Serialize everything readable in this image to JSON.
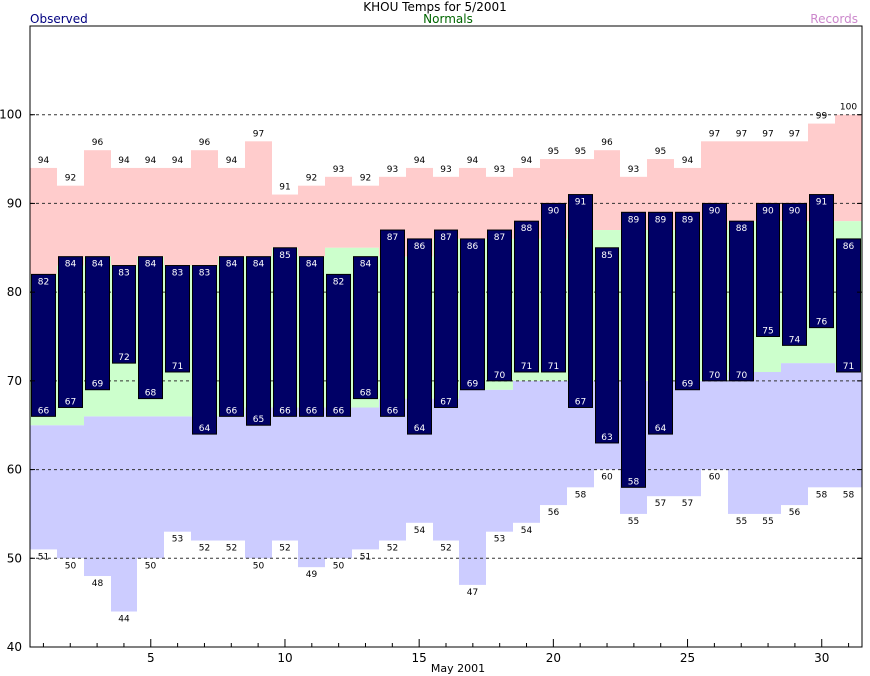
{
  "header": {
    "title": "KHOU Temps for 5/2001",
    "observed_label": "Observed",
    "normals_label": "Normals",
    "records_label": "Records"
  },
  "colors": {
    "observed": "#000066",
    "observed_label": "#000080",
    "normals_band": "#ccffcc",
    "normals_label": "#006600",
    "record_high_band": "#ffcccc",
    "record_low_band": "#ccccff",
    "records_label": "#cc88cc"
  },
  "chart_data": {
    "type": "bar",
    "title": "KHOU Temps for 5/2001",
    "xlabel": "May 2001",
    "ylabel": "",
    "days": [
      1,
      2,
      3,
      4,
      5,
      6,
      7,
      8,
      9,
      10,
      11,
      12,
      13,
      14,
      15,
      16,
      17,
      18,
      19,
      20,
      21,
      22,
      23,
      24,
      25,
      26,
      27,
      28,
      29,
      30,
      31
    ],
    "xlim": [
      0.5,
      31.5
    ],
    "ylim": [
      40,
      110
    ],
    "x_ticks": [
      5,
      10,
      15,
      20,
      25,
      30
    ],
    "y_ticks": [
      40,
      50,
      60,
      70,
      80,
      90,
      100
    ],
    "gridlines_y": [
      50,
      60,
      70,
      80,
      90,
      100
    ],
    "grid": "dashed horizontal",
    "series": [
      {
        "name": "Observed",
        "kind": "floating-bar",
        "high": [
          82,
          84,
          84,
          83,
          84,
          83,
          83,
          84,
          84,
          85,
          84,
          82,
          84,
          87,
          86,
          87,
          86,
          87,
          88,
          90,
          91,
          85,
          89,
          89,
          89,
          90,
          88,
          90,
          90,
          91,
          86
        ],
        "low": [
          66,
          67,
          69,
          72,
          68,
          71,
          64,
          66,
          65,
          66,
          66,
          66,
          68,
          66,
          64,
          67,
          69,
          70,
          71,
          71,
          67,
          63,
          58,
          64,
          69,
          70,
          70,
          75,
          74,
          76,
          71
        ]
      },
      {
        "name": "Normals",
        "kind": "band",
        "high": [
          82,
          83,
          84,
          83,
          84,
          83,
          83,
          84,
          84,
          85,
          84,
          85,
          85,
          84,
          84,
          86,
          86,
          86,
          86,
          86,
          87,
          87,
          87,
          87,
          87,
          87,
          88,
          88,
          88,
          88,
          88
        ],
        "low": [
          65,
          65,
          66,
          66,
          66,
          66,
          66,
          66,
          67,
          67,
          67,
          67,
          67,
          68,
          68,
          68,
          69,
          69,
          70,
          70,
          70,
          70,
          70,
          70,
          70,
          70,
          71,
          71,
          72,
          72,
          71
        ]
      },
      {
        "name": "Records",
        "kind": "band",
        "high": [
          94,
          92,
          96,
          94,
          94,
          94,
          96,
          94,
          97,
          91,
          92,
          93,
          92,
          93,
          94,
          93,
          94,
          93,
          94,
          95,
          95,
          96,
          93,
          95,
          94,
          97,
          97,
          97,
          97,
          99,
          100
        ],
        "low": [
          51,
          50,
          48,
          44,
          50,
          53,
          52,
          52,
          50,
          52,
          49,
          50,
          51,
          52,
          54,
          52,
          47,
          53,
          54,
          56,
          58,
          60,
          55,
          57,
          57,
          60,
          55,
          55,
          56,
          58,
          58
        ]
      }
    ]
  }
}
